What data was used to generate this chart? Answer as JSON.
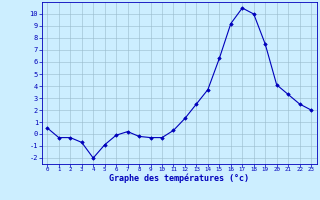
{
  "x": [
    0,
    1,
    2,
    3,
    4,
    5,
    6,
    7,
    8,
    9,
    10,
    11,
    12,
    13,
    14,
    15,
    16,
    17,
    18,
    19,
    20,
    21,
    22,
    23
  ],
  "y": [
    0.5,
    -0.3,
    -0.3,
    -0.7,
    -2.0,
    -0.9,
    -0.1,
    0.2,
    -0.2,
    -0.3,
    -0.3,
    0.3,
    1.3,
    2.5,
    3.7,
    6.3,
    9.2,
    10.5,
    10.0,
    7.5,
    4.1,
    3.3,
    2.5,
    2.0
  ],
  "line_color": "#0000bb",
  "marker": "D",
  "marker_size": 1.8,
  "bg_color": "#cceeff",
  "grid_color": "#99bbcc",
  "xlabel": "Graphe des températures (°c)",
  "xlabel_color": "#0000bb",
  "ylabel_ticks": [
    -2,
    -1,
    0,
    1,
    2,
    3,
    4,
    5,
    6,
    7,
    8,
    9,
    10
  ],
  "xtick_labels": [
    "0",
    "1",
    "2",
    "3",
    "4",
    "5",
    "6",
    "7",
    "8",
    "9",
    "10",
    "11",
    "12",
    "13",
    "14",
    "15",
    "16",
    "17",
    "18",
    "19",
    "20",
    "21",
    "22",
    "23"
  ],
  "ylim": [
    -2.5,
    11.0
  ],
  "xlim": [
    -0.5,
    23.5
  ],
  "tick_color": "#0000bb",
  "spine_color": "#0000bb",
  "ytick_fontsize": 5.0,
  "xtick_fontsize": 4.2,
  "xlabel_fontsize": 6.0
}
